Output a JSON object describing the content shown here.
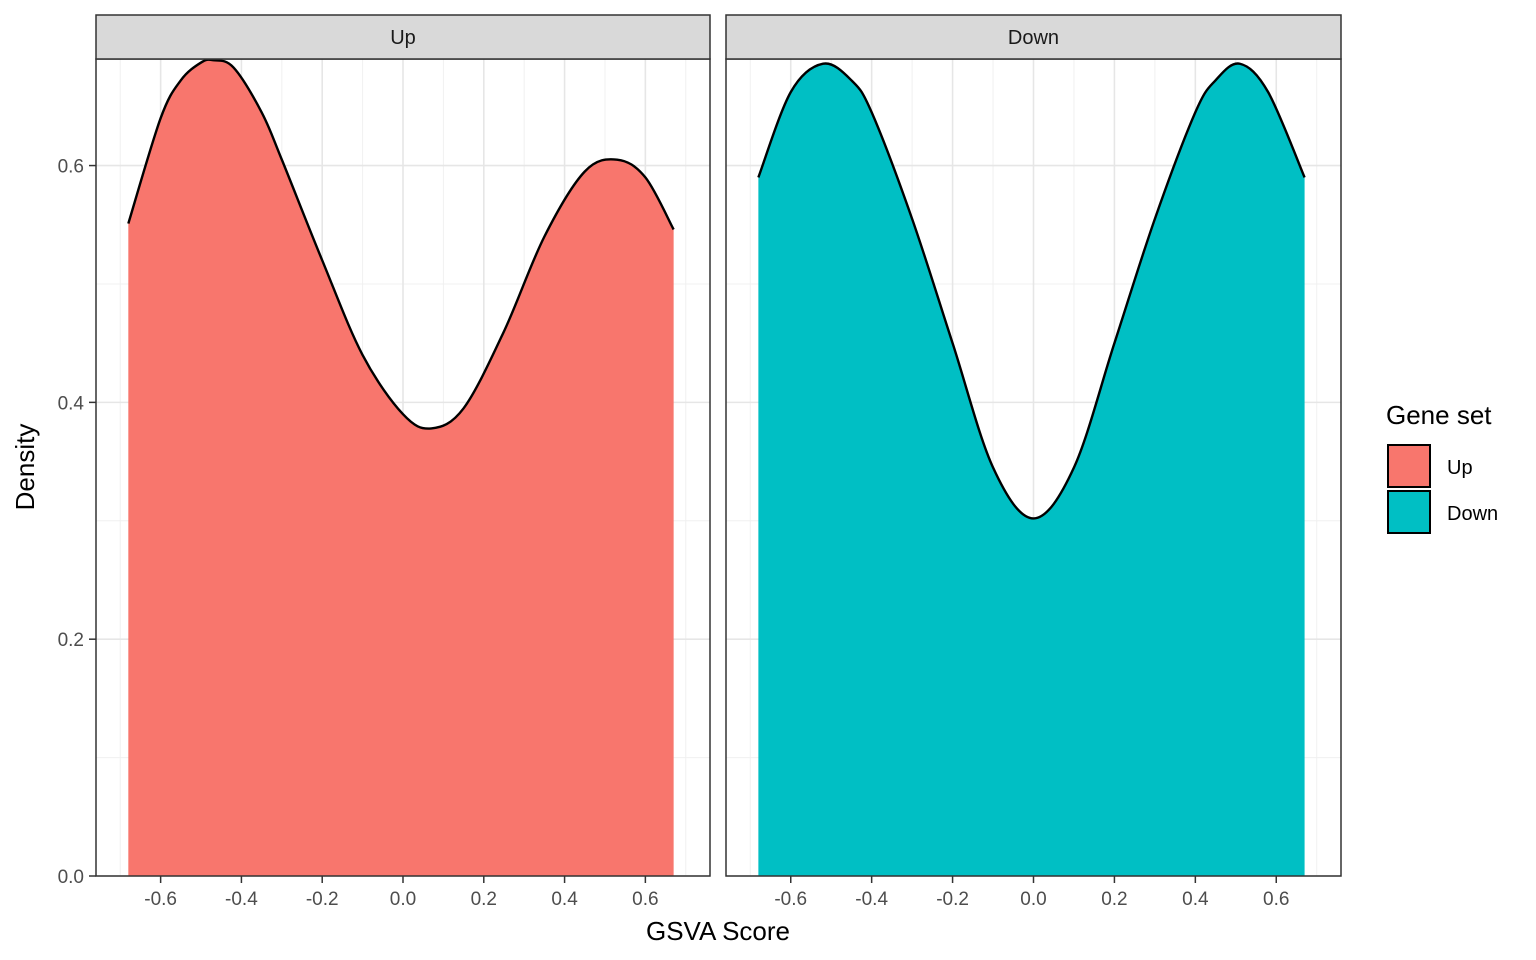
{
  "chart_data": {
    "type": "area",
    "xlabel": "GSVA Score",
    "ylabel": "Density",
    "xlim": [
      -0.76,
      0.76
    ],
    "ylim": [
      0,
      0.69
    ],
    "x_ticks": [
      -0.6,
      -0.4,
      -0.2,
      0.0,
      0.2,
      0.4,
      0.6
    ],
    "x_tick_labels": [
      "-0.6",
      "-0.4",
      "-0.2",
      "0.0",
      "0.2",
      "0.4",
      "0.6"
    ],
    "y_ticks": [
      0.0,
      0.2,
      0.4,
      0.6
    ],
    "y_tick_labels": [
      "0.0",
      "0.2",
      "0.4",
      "0.6"
    ],
    "grid": true,
    "legend": {
      "title": "Gene set",
      "placement": "right",
      "entries": [
        {
          "label": "Up",
          "color": "#F8766D"
        },
        {
          "label": "Down",
          "color": "#00BFC4"
        }
      ]
    },
    "panels": [
      {
        "strip": "Up",
        "fill": "#F8766D",
        "x": [
          -0.68,
          -0.6,
          -0.55,
          -0.5,
          -0.47,
          -0.42,
          -0.35,
          -0.3,
          -0.2,
          -0.1,
          0.0,
          0.07,
          0.15,
          0.25,
          0.35,
          0.45,
          0.53,
          0.6,
          0.67
        ],
        "y": [
          0.551,
          0.64,
          0.672,
          0.687,
          0.689,
          0.683,
          0.645,
          0.605,
          0.52,
          0.44,
          0.39,
          0.378,
          0.395,
          0.46,
          0.54,
          0.595,
          0.605,
          0.59,
          0.546
        ]
      },
      {
        "strip": "Down",
        "fill": "#00BFC4",
        "x": [
          -0.68,
          -0.6,
          -0.52,
          -0.45,
          -0.4,
          -0.3,
          -0.2,
          -0.1,
          0.0,
          0.1,
          0.2,
          0.3,
          0.4,
          0.45,
          0.51,
          0.58,
          0.67
        ],
        "y": [
          0.59,
          0.662,
          0.686,
          0.672,
          0.645,
          0.555,
          0.45,
          0.345,
          0.302,
          0.345,
          0.45,
          0.555,
          0.645,
          0.672,
          0.686,
          0.662,
          0.59
        ]
      }
    ]
  }
}
